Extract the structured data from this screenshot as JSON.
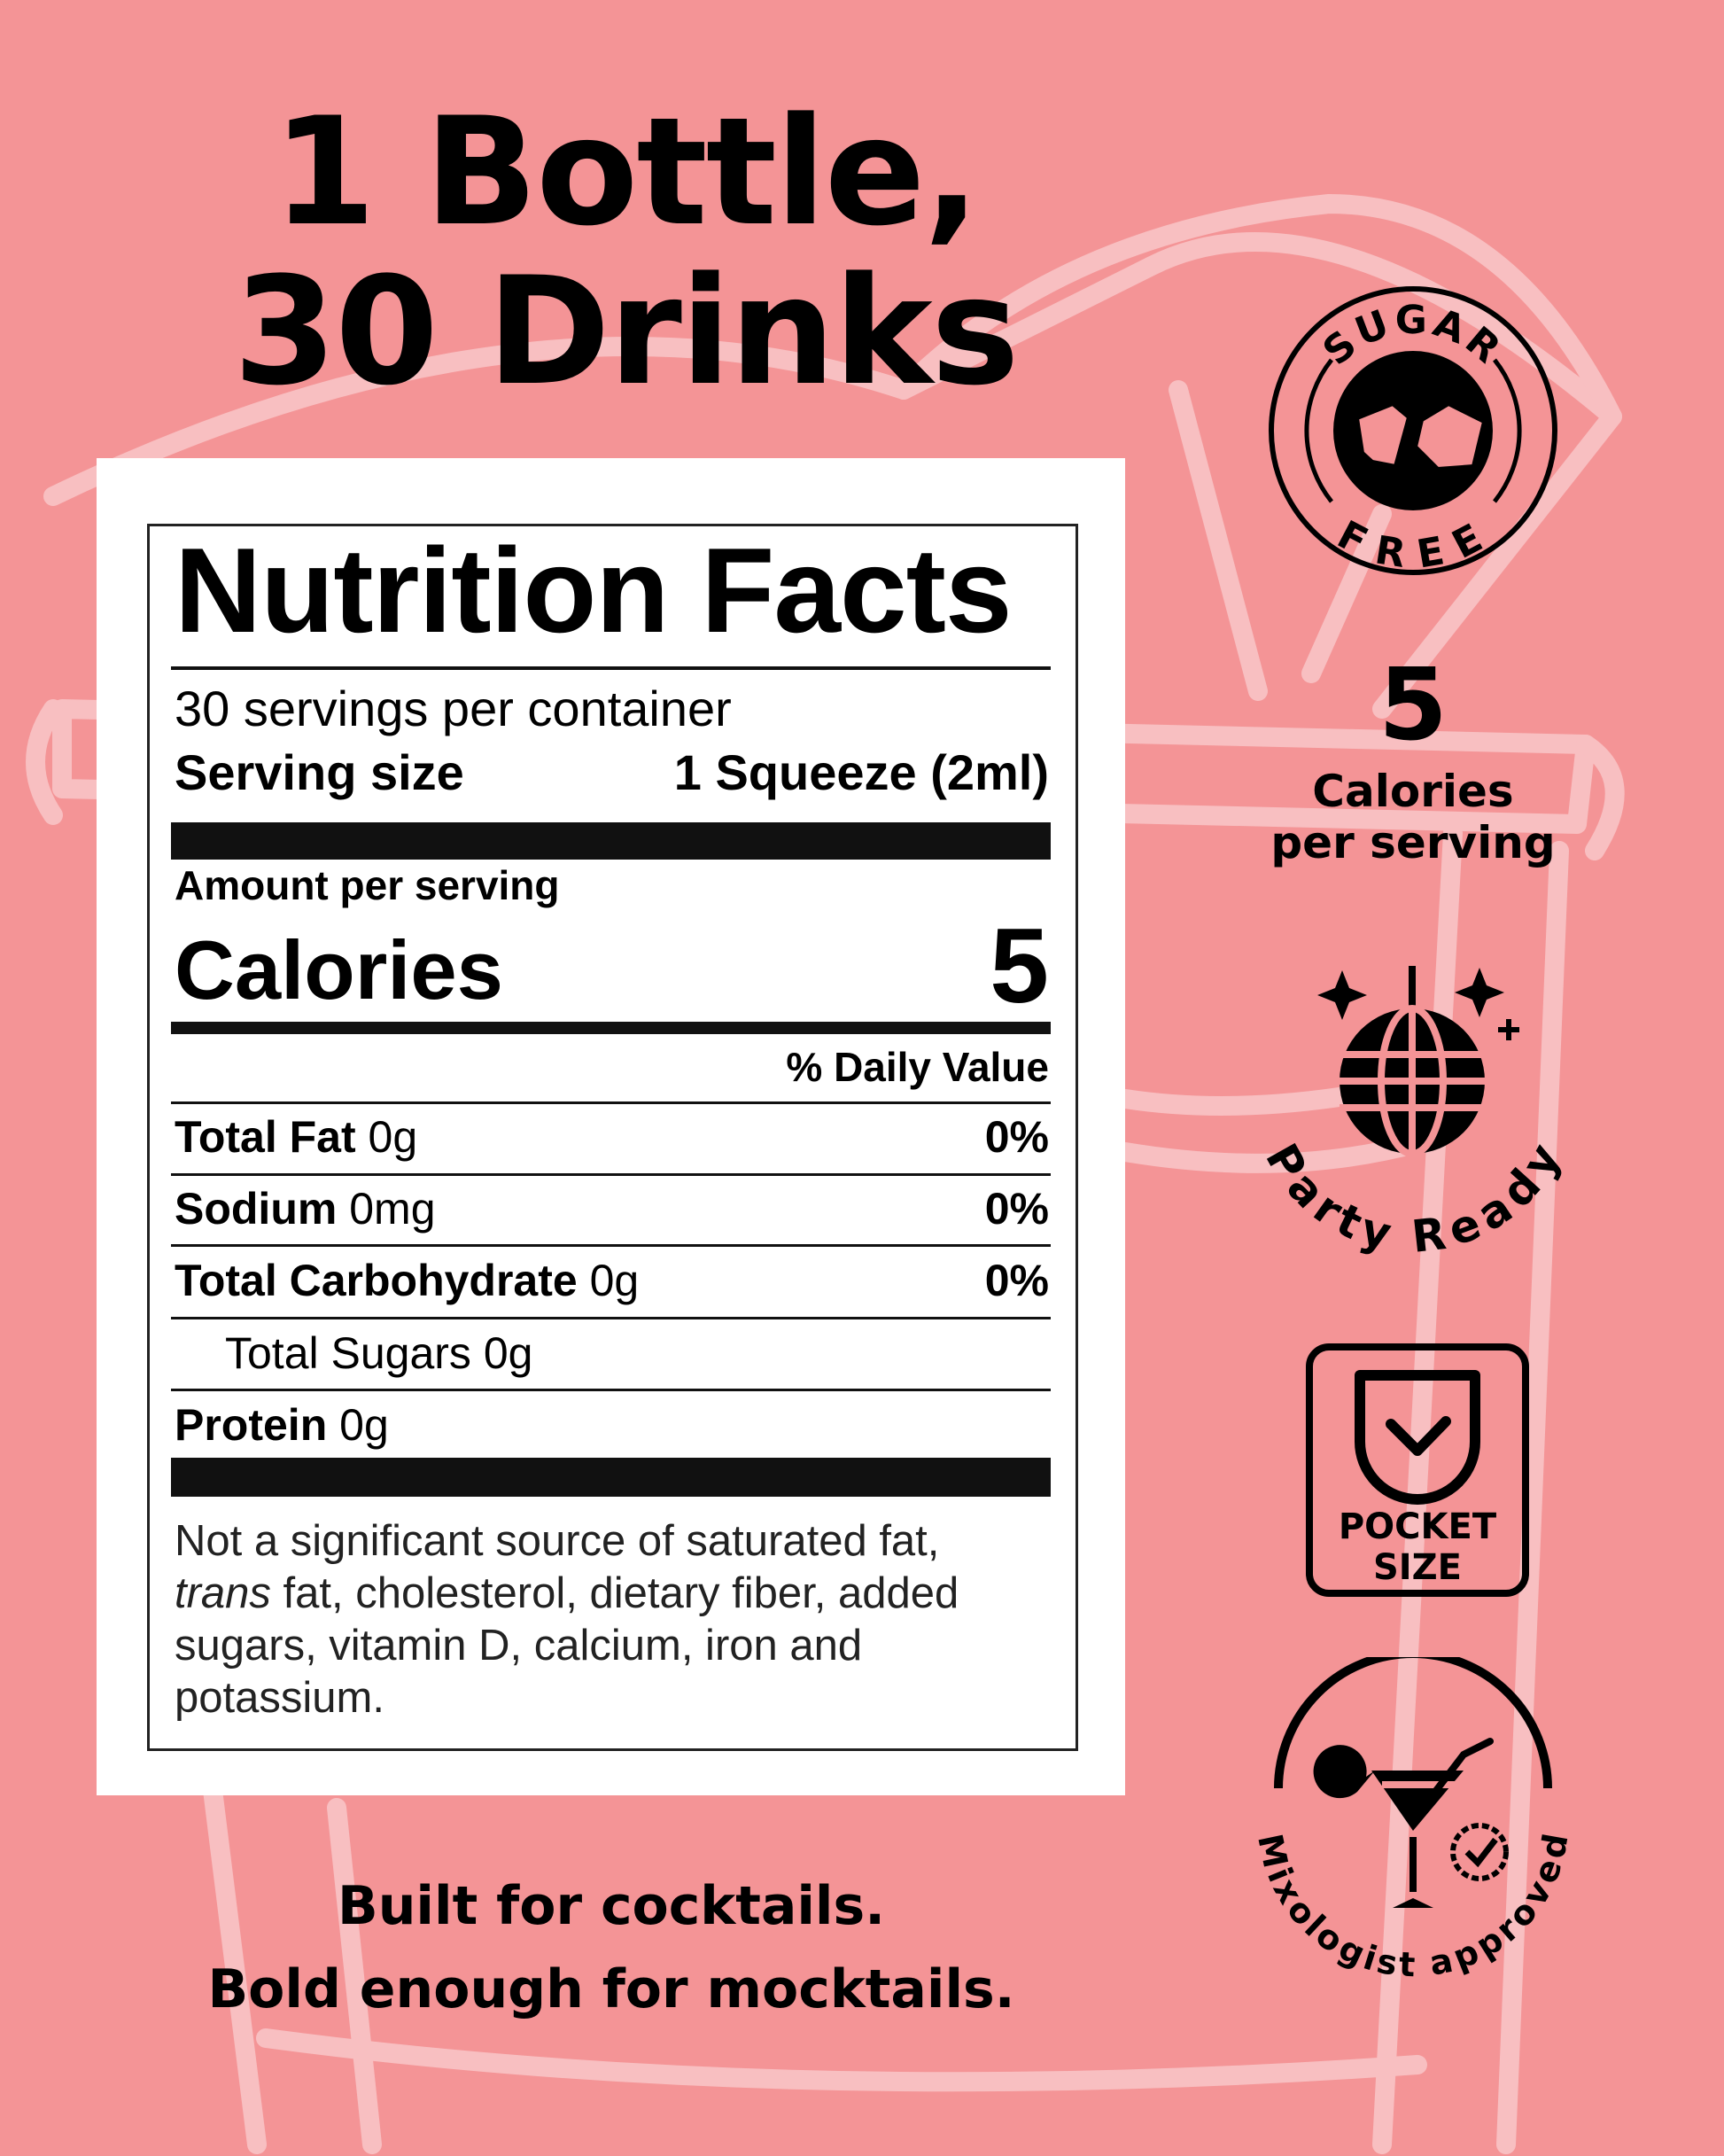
{
  "headline": {
    "line1": "1 Bottle,",
    "line2": "30 Drinks"
  },
  "nutrition": {
    "title": "Nutrition Facts",
    "servings": "30 servings per container",
    "serving_size_label": "Serving size",
    "serving_size_value": "1 Squeeze (2ml)",
    "amount_per_serving": "Amount per serving",
    "calories_label": "Calories",
    "calories_value": "5",
    "daily_value_header": "% Daily Value",
    "rows": [
      {
        "label": "Total Fat",
        "amount": "0g",
        "dv": "0%"
      },
      {
        "label": "Sodium",
        "amount": "0mg",
        "dv": "0%"
      },
      {
        "label": "Total Carbohydrate",
        "amount": "0g",
        "dv": "0%"
      },
      {
        "label": "Total Sugars",
        "amount": "0g",
        "dv": ""
      },
      {
        "label": "Protein",
        "amount": "0g",
        "dv": ""
      }
    ],
    "footnote_pre": "Not a significant source of saturated fat,",
    "footnote_italic": "trans",
    "footnote_post": " fat, cholesterol, dietary fiber, added sugars, vitamin D, calcium, iron and potassium."
  },
  "tagline": {
    "line1": "Built for cocktails.",
    "line2": "Bold enough for mocktails."
  },
  "badges": {
    "sugar_free": {
      "top": "SUGAR",
      "bottom": "FREE",
      "icon": "sugar-cubes-icon"
    },
    "calories": {
      "value": "5",
      "line1": "Calories",
      "line2": "per serving"
    },
    "party": {
      "text": "Party Ready",
      "icon": "disco-ball-icon"
    },
    "pocket": {
      "line1": "POCKET",
      "line2": "SIZE",
      "icon": "pocket-check-icon"
    },
    "mixologist": {
      "text": "Mixologist approved",
      "icon": "cocktail-glass-icon"
    }
  },
  "colors": {
    "background": "#f49496",
    "line_art": "#f8bfc1",
    "ink": "#000000",
    "panel": "#ffffff"
  }
}
